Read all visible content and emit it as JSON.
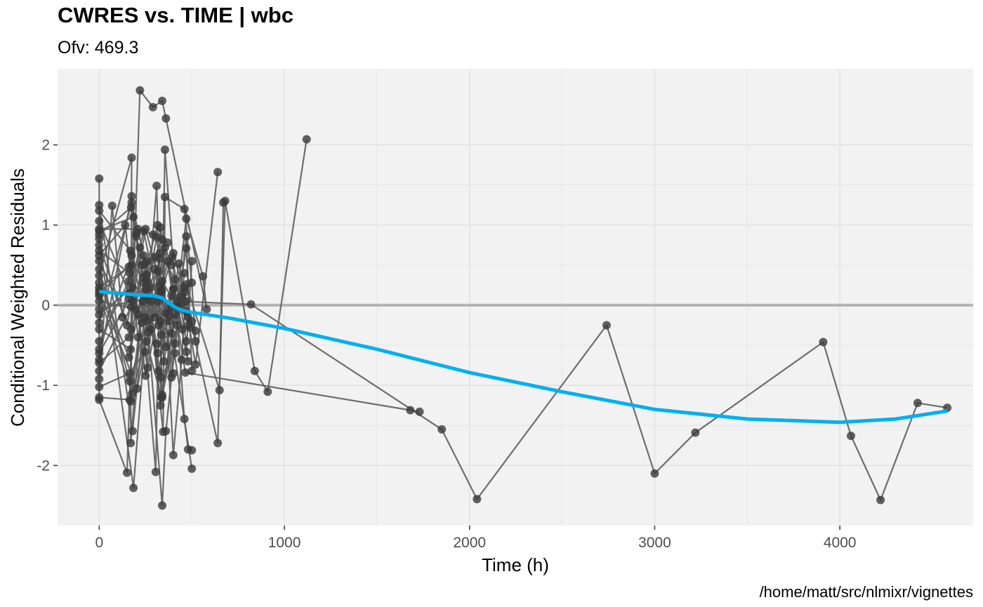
{
  "chart_data": {
    "type": "scatter",
    "title": "CWRES vs. TIME | wbc",
    "subtitle": "Ofv: 469.3",
    "xlabel": "Time (h)",
    "ylabel": "Conditional Weighted Residuals",
    "caption": "/home/matt/src/nlmixr/vignettes",
    "xlim": [
      -225,
      4720
    ],
    "ylim": [
      -2.75,
      2.95
    ],
    "x_ticks": [
      0,
      1000,
      2000,
      3000,
      4000
    ],
    "y_ticks": [
      -2,
      -1,
      0,
      1,
      2
    ],
    "grid": true,
    "legend": "none",
    "reference_line_y": 0,
    "colors": {
      "panel": "#F2F2F2",
      "grid": "#E0E0E0",
      "points": "#3A3A3A",
      "lines": "#5E5E5E",
      "smooth": "#00B0F0",
      "reference": "#B3B3B3"
    },
    "series": [
      {
        "points": [
          [
            0,
            1.58
          ],
          [
            0,
            -1.18
          ],
          [
            150,
            -2.09
          ],
          [
            220,
            2.68
          ],
          [
            290,
            2.47
          ],
          [
            340,
            2.55
          ],
          [
            360,
            2.33
          ],
          [
            580,
            -0.05
          ],
          [
            560,
            0.36
          ],
          [
            470,
            1.08
          ],
          [
            410,
            -0.12
          ],
          [
            380,
            -0.13
          ]
        ]
      },
      {
        "points": [
          [
            0,
            0.93
          ],
          [
            185,
            1.1
          ],
          [
            170,
            -1.2
          ],
          [
            260,
            0.55
          ],
          [
            330,
            -1.25
          ],
          [
            355,
            1.94
          ],
          [
            460,
            -1.42
          ],
          [
            480,
            -1.8
          ],
          [
            500,
            -1.81
          ]
        ]
      },
      {
        "points": [
          [
            0,
            0.37
          ],
          [
            175,
            1.84
          ],
          [
            170,
            -1.72
          ],
          [
            250,
            0.52
          ],
          [
            345,
            -1.58
          ],
          [
            355,
            1.35
          ],
          [
            460,
            1.2
          ],
          [
            500,
            0.28
          ],
          [
            520,
            -0.45
          ]
        ]
      },
      {
        "points": [
          [
            0,
            0.83
          ],
          [
            185,
            -2.28
          ],
          [
            310,
            1.49
          ],
          [
            340,
            -1.15
          ],
          [
            470,
            0.71
          ],
          [
            490,
            -0.28
          ]
        ]
      },
      {
        "points": [
          [
            0,
            -0.68
          ],
          [
            175,
            1.36
          ],
          [
            200,
            0.86
          ],
          [
            305,
            -2.08
          ],
          [
            330,
            0.97
          ],
          [
            470,
            -0.58
          ],
          [
            500,
            0.55
          ]
        ]
      },
      {
        "points": [
          [
            0,
            -0.55
          ],
          [
            175,
            0.62
          ],
          [
            265,
            -0.34
          ],
          [
            340,
            -2.5
          ],
          [
            360,
            -1.57
          ],
          [
            470,
            0.86
          ],
          [
            500,
            -0.82
          ]
        ]
      },
      {
        "points": [
          [
            0,
            0.12
          ],
          [
            178,
            -1.1
          ],
          [
            255,
            0.38
          ],
          [
            340,
            0.82
          ],
          [
            400,
            -1.87
          ],
          [
            445,
            -0.68
          ],
          [
            470,
            0.26
          ],
          [
            650,
            -1.06
          ],
          [
            670,
            1.28
          ]
        ]
      },
      {
        "points": [
          [
            0,
            0.18
          ],
          [
            205,
            -1.04
          ],
          [
            355,
            0.72
          ],
          [
            465,
            -0.84
          ],
          [
            1680,
            -1.31
          ],
          [
            1730,
            -1.33
          ]
        ]
      },
      {
        "points": [
          [
            0,
            -0.22
          ],
          [
            175,
            1.28
          ],
          [
            280,
            0.22
          ],
          [
            335,
            -0.37
          ],
          [
            380,
            -0.2
          ],
          [
            500,
            -2.04
          ]
        ]
      },
      {
        "points": [
          [
            0,
            1.25
          ],
          [
            180,
            -1.57
          ],
          [
            255,
            0.12
          ],
          [
            340,
            -1.12
          ],
          [
            460,
            0.16
          ],
          [
            640,
            -1.72
          ],
          [
            680,
            1.3
          ],
          [
            840,
            -0.82
          ],
          [
            910,
            -1.08
          ],
          [
            1120,
            2.07
          ]
        ]
      },
      {
        "points": [
          [
            0,
            -0.05
          ],
          [
            180,
            0.05
          ],
          [
            260,
            0.08
          ],
          [
            330,
            0.12
          ],
          [
            380,
            -0.05
          ],
          [
            470,
            -0.08
          ],
          [
            520,
            -0.32
          ]
        ]
      },
      {
        "points": [
          [
            0,
            0.15
          ],
          [
            160,
            0.48
          ],
          [
            210,
            -0.12
          ],
          [
            300,
            0.6
          ],
          [
            350,
            -0.7
          ],
          [
            430,
            0.52
          ],
          [
            520,
            -0.74
          ],
          [
            640,
            1.66
          ]
        ]
      },
      {
        "points": [
          [
            0,
            -0.92
          ],
          [
            70,
            1.24
          ],
          [
            125,
            -0.15
          ],
          [
            200,
            0.9
          ],
          [
            275,
            -0.3
          ],
          [
            340,
            0.3
          ],
          [
            420,
            -0.02
          ],
          [
            480,
            -0.7
          ]
        ]
      },
      {
        "points": [
          [
            0,
            0.62
          ],
          [
            140,
            1.0
          ],
          [
            210,
            -0.4
          ],
          [
            300,
            0.45
          ],
          [
            360,
            -0.52
          ],
          [
            440,
            0.1
          ],
          [
            500,
            -0.2
          ]
        ]
      },
      {
        "points": [
          [
            0,
            -0.45
          ],
          [
            160,
            0.3
          ],
          [
            230,
            -0.22
          ],
          [
            310,
            0.85
          ],
          [
            390,
            -0.9
          ],
          [
            460,
            0.4
          ]
        ]
      },
      {
        "points": [
          [
            0,
            0.75
          ],
          [
            150,
            -0.25
          ],
          [
            220,
            0.72
          ],
          [
            300,
            -0.15
          ],
          [
            370,
            0.55
          ],
          [
            450,
            -0.3
          ]
        ]
      },
      {
        "points": [
          [
            0,
            -0.3
          ],
          [
            170,
            -0.55
          ],
          [
            240,
            0.28
          ],
          [
            320,
            -0.82
          ],
          [
            400,
            0.2
          ],
          [
            480,
            -0.15
          ]
        ]
      },
      {
        "points": [
          [
            0,
            1.05
          ],
          [
            160,
            0.15
          ],
          [
            240,
            0.92
          ],
          [
            320,
            0.05
          ],
          [
            400,
            0.65
          ],
          [
            470,
            0.05
          ]
        ]
      },
      {
        "points": [
          [
            0,
            -0.72
          ],
          [
            160,
            -0.4
          ],
          [
            230,
            0.5
          ],
          [
            310,
            -0.48
          ],
          [
            390,
            -0.35
          ],
          [
            460,
            0.22
          ]
        ]
      },
      {
        "points": [
          [
            0,
            0.95
          ],
          [
            210,
            0.95
          ],
          [
            290,
            0.88
          ],
          [
            370,
            0.78
          ]
        ]
      },
      {
        "points": [
          [
            0,
            -1.02
          ],
          [
            165,
            -0.85
          ],
          [
            245,
            -0.58
          ],
          [
            320,
            0.42
          ],
          [
            395,
            0.6
          ],
          [
            470,
            -0.45
          ]
        ]
      },
      {
        "points": [
          [
            0,
            0.45
          ],
          [
            165,
            -0.95
          ],
          [
            260,
            -0.2
          ],
          [
            330,
            0.18
          ],
          [
            410,
            -0.48
          ]
        ]
      },
      {
        "points": [
          [
            0,
            1.18
          ],
          [
            168,
            0.68
          ],
          [
            250,
            -0.88
          ],
          [
            330,
            0.65
          ],
          [
            410,
            0.32
          ],
          [
            480,
            -0.25
          ]
        ]
      },
      {
        "points": [
          [
            0,
            0.05
          ],
          [
            195,
            -0.05
          ],
          [
            280,
            0.05
          ],
          [
            360,
            -0.1
          ],
          [
            440,
            0.0
          ]
        ]
      },
      {
        "points": [
          [
            0,
            -0.12
          ],
          [
            178,
            0.22
          ],
          [
            262,
            -0.78
          ],
          [
            338,
            0.18
          ],
          [
            420,
            -0.25
          ]
        ]
      },
      {
        "points": [
          [
            0,
            0.88
          ],
          [
            172,
            1.22
          ],
          [
            240,
            0.35
          ],
          [
            315,
            1.0
          ],
          [
            390,
            0.5
          ]
        ]
      },
      {
        "points": [
          [
            0,
            0.68
          ],
          [
            165,
            0.4
          ],
          [
            235,
            0.05
          ],
          [
            315,
            -0.6
          ],
          [
            390,
            0.12
          ]
        ]
      },
      {
        "points": [
          [
            0,
            -0.6
          ],
          [
            162,
            0.08
          ],
          [
            248,
            -0.15
          ],
          [
            325,
            0.58
          ]
        ]
      },
      {
        "points": [
          [
            0,
            0.55
          ],
          [
            172,
            -0.3
          ],
          [
            252,
            0.2
          ],
          [
            332,
            -0.9
          ],
          [
            410,
            -0.6
          ]
        ]
      },
      {
        "points": [
          [
            0,
            0.28
          ],
          [
            160,
            -0.65
          ],
          [
            240,
            0.62
          ],
          [
            320,
            -0.25
          ]
        ]
      },
      {
        "points": [
          [
            0,
            -0.82
          ],
          [
            172,
            -0.02
          ],
          [
            250,
            0.95
          ],
          [
            330,
            0.25
          ],
          [
            400,
            -0.85
          ]
        ]
      },
      {
        "points": [
          [
            0,
            0.22
          ],
          [
            175,
            0.5
          ],
          [
            260,
            0.3
          ],
          [
            330,
            -0.2
          ],
          [
            400,
            0.2
          ]
        ]
      },
      {
        "points": [
          [
            0,
            -1.15
          ],
          [
            165,
            -1.18
          ],
          [
            255,
            -0.45
          ],
          [
            335,
            -1.15
          ],
          [
            420,
            0.05
          ],
          [
            820,
            0.01
          ],
          [
            1850,
            -1.55
          ],
          [
            2040,
            -2.42
          ],
          [
            2740,
            -0.25
          ],
          [
            3000,
            -2.1
          ],
          [
            3220,
            -1.59
          ],
          [
            3910,
            -0.46
          ],
          [
            4060,
            -1.63
          ],
          [
            4220,
            -2.43
          ],
          [
            4420,
            -1.22
          ],
          [
            4580,
            -1.28
          ]
        ]
      }
    ],
    "smooth": [
      [
        0,
        0.17
      ],
      [
        100,
        0.15
      ],
      [
        200,
        0.13
      ],
      [
        290,
        0.12
      ],
      [
        340,
        0.09
      ],
      [
        380,
        0.02
      ],
      [
        420,
        -0.04
      ],
      [
        460,
        -0.07
      ],
      [
        500,
        -0.09
      ],
      [
        700,
        -0.16
      ],
      [
        1000,
        -0.29
      ],
      [
        1500,
        -0.55
      ],
      [
        2000,
        -0.84
      ],
      [
        2500,
        -1.08
      ],
      [
        3000,
        -1.3
      ],
      [
        3500,
        -1.42
      ],
      [
        4000,
        -1.46
      ],
      [
        4300,
        -1.42
      ],
      [
        4580,
        -1.32
      ]
    ]
  }
}
